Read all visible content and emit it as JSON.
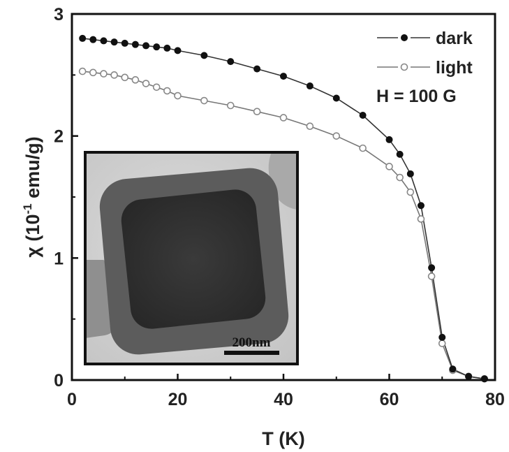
{
  "chart_data": {
    "type": "scatter",
    "xlabel": "T (K)",
    "ylabel_parts": [
      "χ (10",
      "-1",
      " emu/g)"
    ],
    "xlim": [
      0,
      80
    ],
    "ylim": [
      0,
      3
    ],
    "x_ticks": [
      "0",
      "20",
      "40",
      "60",
      "80"
    ],
    "y_ticks": [
      "0",
      "1",
      "2",
      "3"
    ],
    "grid": false,
    "legend_position": "top-right",
    "annotation": "H = 100 G",
    "series": [
      {
        "name": "dark",
        "marker": "filled-circle",
        "color": "#111111",
        "x": [
          2,
          4,
          6,
          8,
          10,
          12,
          14,
          16,
          18,
          20,
          25,
          30,
          35,
          40,
          45,
          50,
          55,
          60,
          62,
          64,
          66,
          68,
          70,
          72,
          75,
          78
        ],
        "y": [
          2.8,
          2.79,
          2.78,
          2.77,
          2.76,
          2.75,
          2.74,
          2.73,
          2.72,
          2.7,
          2.66,
          2.61,
          2.55,
          2.49,
          2.41,
          2.31,
          2.17,
          1.97,
          1.85,
          1.69,
          1.43,
          0.92,
          0.35,
          0.09,
          0.03,
          0.01
        ]
      },
      {
        "name": "light",
        "marker": "open-circle",
        "color": "#888888",
        "x": [
          2,
          4,
          6,
          8,
          10,
          12,
          14,
          16,
          18,
          20,
          25,
          30,
          35,
          40,
          45,
          50,
          55,
          60,
          62,
          64,
          66,
          68,
          70,
          72,
          75,
          78
        ],
        "y": [
          2.53,
          2.52,
          2.51,
          2.5,
          2.48,
          2.46,
          2.43,
          2.4,
          2.37,
          2.33,
          2.29,
          2.25,
          2.2,
          2.15,
          2.08,
          2.0,
          1.9,
          1.75,
          1.66,
          1.54,
          1.32,
          0.85,
          0.3,
          0.08,
          0.03,
          0.01
        ]
      }
    ],
    "inset": {
      "kind": "TEM micrograph",
      "scale_bar_label": "200nm"
    }
  }
}
